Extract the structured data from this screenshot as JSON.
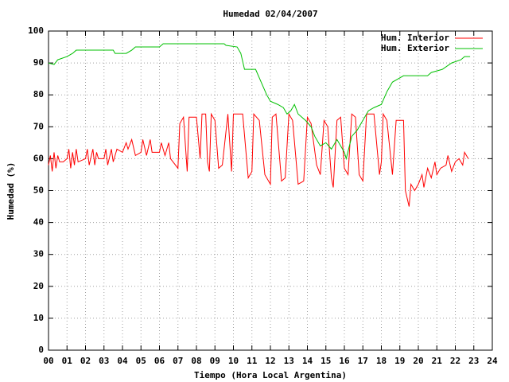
{
  "chart_data": {
    "type": "line",
    "title": "Humedad 02/04/2007",
    "xlabel": "Tiempo (Hora Local Argentina)",
    "ylabel": "Humedad (%)",
    "xlim": [
      0,
      24
    ],
    "ylim": [
      0,
      100
    ],
    "xticks": [
      {
        "value": 0,
        "label": "00"
      },
      {
        "value": 1,
        "label": "01"
      },
      {
        "value": 2,
        "label": "02"
      },
      {
        "value": 3,
        "label": "03"
      },
      {
        "value": 4,
        "label": "04"
      },
      {
        "value": 5,
        "label": "05"
      },
      {
        "value": 6,
        "label": "06"
      },
      {
        "value": 7,
        "label": "07"
      },
      {
        "value": 8,
        "label": "08"
      },
      {
        "value": 9,
        "label": "09"
      },
      10,
      11,
      12,
      13,
      14,
      15,
      16,
      17,
      18,
      19,
      20,
      21,
      22,
      23,
      24
    ],
    "yticks": [
      0,
      10,
      20,
      30,
      40,
      50,
      60,
      70,
      80,
      90,
      100
    ],
    "grid": true,
    "legend": "top-right",
    "series": [
      {
        "name": "Hum. Interior",
        "color": "#ff0000",
        "x": [
          0,
          0.1,
          0.2,
          0.3,
          0.4,
          0.5,
          0.6,
          0.8,
          1.0,
          1.1,
          1.2,
          1.3,
          1.4,
          1.5,
          1.6,
          2.0,
          2.1,
          2.2,
          2.4,
          2.5,
          2.6,
          2.7,
          3.0,
          3.1,
          3.2,
          3.4,
          3.5,
          3.7,
          4.0,
          4.2,
          4.3,
          4.5,
          4.7,
          5.0,
          5.1,
          5.3,
          5.5,
          5.6,
          6.0,
          6.1,
          6.3,
          6.5,
          6.6,
          7.0,
          7.1,
          7.3,
          7.5,
          7.6,
          8.0,
          8.2,
          8.3,
          8.5,
          8.6,
          8.7,
          8.8,
          9.0,
          9.2,
          9.4,
          9.7,
          9.9,
          10.0,
          10.5,
          10.8,
          11.0,
          11.1,
          11.4,
          11.7,
          12.0,
          12.1,
          12.3,
          12.6,
          12.8,
          13.0,
          13.2,
          13.5,
          13.8,
          14.0,
          14.2,
          14.5,
          14.7,
          14.9,
          15.1,
          15.3,
          15.4,
          15.6,
          15.8,
          16.0,
          16.2,
          16.4,
          16.6,
          16.8,
          17.0,
          17.2,
          17.6,
          17.9,
          18.0,
          18.1,
          18.3,
          18.6,
          18.8,
          19.2,
          19.3,
          19.5,
          19.6,
          19.8,
          20.0,
          20.2,
          20.3,
          20.5,
          20.7,
          20.9,
          21.0,
          21.2,
          21.5,
          21.6,
          21.8,
          22.0,
          22.2,
          22.4,
          22.5,
          22.7
        ],
        "values": [
          58,
          61,
          56,
          62,
          57,
          61,
          59,
          59,
          60,
          63,
          57,
          62,
          58,
          63,
          59,
          60,
          63,
          58,
          63,
          58,
          62,
          60,
          60,
          63,
          58,
          63,
          59,
          63,
          62,
          65,
          63,
          66,
          61,
          62,
          66,
          61,
          66,
          62,
          62,
          65,
          61,
          65,
          60,
          57,
          71,
          73,
          56,
          73,
          73,
          60,
          74,
          74,
          59,
          56,
          74,
          72,
          57,
          58,
          74,
          56,
          74,
          74,
          54,
          56,
          74,
          72,
          55,
          52,
          73,
          74,
          53,
          54,
          74,
          72,
          52,
          53,
          73,
          71,
          58,
          55,
          72,
          70,
          54,
          51,
          72,
          73,
          57,
          55,
          74,
          73,
          55,
          53,
          74,
          74,
          55,
          59,
          74,
          72,
          55,
          72,
          72,
          50,
          45,
          52,
          50,
          52,
          55,
          51,
          57,
          54,
          59,
          55,
          57,
          58,
          61,
          56,
          59,
          60,
          58,
          62,
          60
        ]
      },
      {
        "name": "Hum. Exterior",
        "color": "#00c000",
        "x": [
          0,
          0.3,
          0.5,
          1.0,
          1.3,
          1.5,
          3.5,
          3.6,
          4.2,
          4.5,
          4.7,
          6.0,
          6.2,
          9.5,
          9.6,
          10.2,
          10.4,
          10.6,
          11.2,
          11.5,
          11.8,
          12.0,
          12.4,
          12.7,
          12.9,
          13.1,
          13.3,
          13.5,
          13.9,
          14.2,
          14.4,
          14.7,
          15.0,
          15.3,
          15.6,
          16.0,
          16.1,
          16.4,
          16.7,
          17.0,
          17.3,
          17.6,
          18.0,
          18.3,
          18.6,
          18.9,
          19.2,
          19.5,
          20.5,
          20.7,
          21.3,
          21.8,
          22.3,
          22.5,
          22.8
        ],
        "values": [
          90,
          89.5,
          91,
          92,
          93,
          94,
          94,
          93,
          93,
          94,
          95,
          95,
          96,
          96,
          95.5,
          95,
          93,
          88,
          88,
          84,
          80,
          78,
          77,
          76,
          74,
          75,
          77,
          74,
          72,
          70,
          67,
          64,
          65,
          63,
          66,
          62,
          60,
          67,
          69,
          72,
          75,
          76,
          77,
          81,
          84,
          85,
          86,
          86,
          86,
          87,
          88,
          90,
          91,
          92,
          92
        ]
      }
    ]
  }
}
